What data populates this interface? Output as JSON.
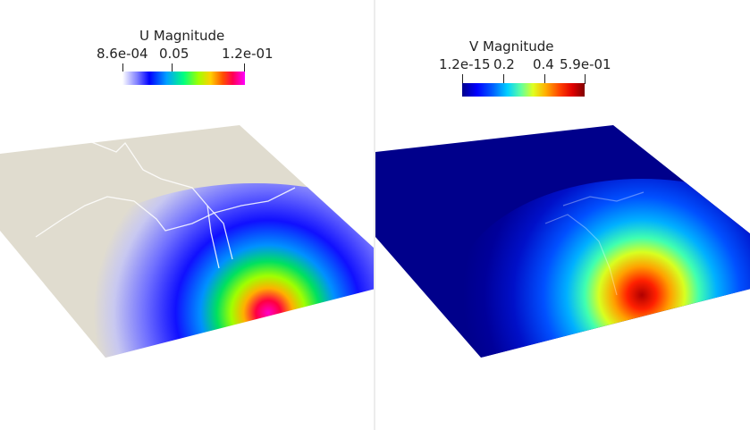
{
  "left_view": {
    "colorbar": {
      "title": "U Magnitude",
      "min_label": "8.6e-04",
      "mid_label": "0.05",
      "max_label": "1.2e-01",
      "colormap": "rainbow"
    },
    "surface_color": "#e0dccf"
  },
  "right_view": {
    "colorbar": {
      "title": "V Magnitude",
      "min_label": "1.2e-15",
      "tick1_label": "0.2",
      "tick2_label": "0.4",
      "max_label": "5.9e-01",
      "colormap": "jet"
    },
    "surface_color": "#00008b"
  }
}
